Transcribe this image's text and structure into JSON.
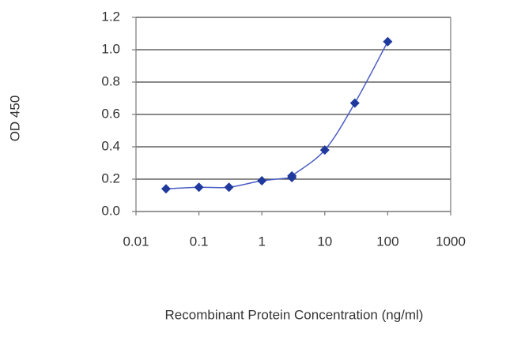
{
  "chart_data": {
    "type": "scatter",
    "x_label": "Recombinant Protein Concentration (ng/ml)",
    "y_label": "OD 450",
    "x": [
      0.03,
      0.1,
      0.3,
      1,
      3,
      3,
      10,
      30,
      100
    ],
    "series": [
      {
        "color": "#1f3a9c",
        "values": [
          0.14,
          0.15,
          0.15,
          0.19,
          0.21,
          0.22,
          0.38,
          0.67,
          1.05
        ]
      }
    ],
    "line_color": "#4a5cc4",
    "connect": true,
    "xscale": "log",
    "xlim": [
      0.01,
      1000
    ],
    "xticks": [
      0.01,
      0.1,
      1,
      10,
      100,
      1000
    ],
    "ylim": [
      0,
      1.2
    ],
    "yticks": [
      {
        "value": 0,
        "label": "0.0"
      },
      0.2,
      0.4,
      0.6,
      0.8,
      {
        "value": 1,
        "label": "1.0"
      },
      1.2
    ],
    "grid": true
  }
}
